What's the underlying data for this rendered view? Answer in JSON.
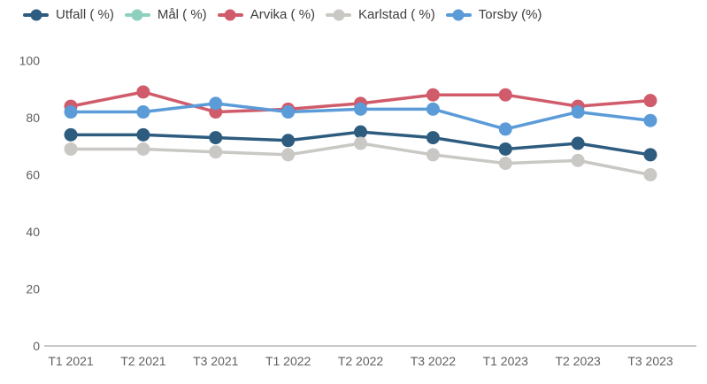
{
  "chart_data": {
    "type": "line",
    "title": "",
    "xlabel": "",
    "ylabel": "",
    "categories": [
      "T1 2021",
      "T2 2021",
      "T3 2021",
      "T1 2022",
      "T2 2022",
      "T3 2022",
      "T1 2023",
      "T2 2023",
      "T3 2023"
    ],
    "series": [
      {
        "name": "Utfall ( %)",
        "color": "#2d5c7f",
        "values": [
          74,
          74,
          73,
          72,
          75,
          73,
          69,
          71,
          67
        ]
      },
      {
        "name": "Mål ( %)",
        "color": "#8ed0be",
        "values": []
      },
      {
        "name": "Arvika ( %)",
        "color": "#d05b6b",
        "values": [
          84,
          89,
          82,
          83,
          85,
          88,
          88,
          84,
          86
        ]
      },
      {
        "name": "Karlstad ( %)",
        "color": "#c9c8c4",
        "values": [
          69,
          69,
          68,
          67,
          71,
          67,
          64,
          65,
          60
        ]
      },
      {
        "name": "Torsby (%)",
        "color": "#5b9bd8",
        "values": [
          82,
          82,
          85,
          82,
          83,
          83,
          76,
          82,
          79
        ]
      }
    ],
    "ylim": [
      0,
      100
    ],
    "ytick_step": 20,
    "yaxis_tick_labels": [
      "0",
      "20",
      "40",
      "60",
      "80",
      "100"
    ],
    "grid": false,
    "legend_position": "top-left",
    "axis_color": "#c9c9c9",
    "label_color": "#5f5f5f",
    "legend_text_color": "#3d3d3d"
  }
}
